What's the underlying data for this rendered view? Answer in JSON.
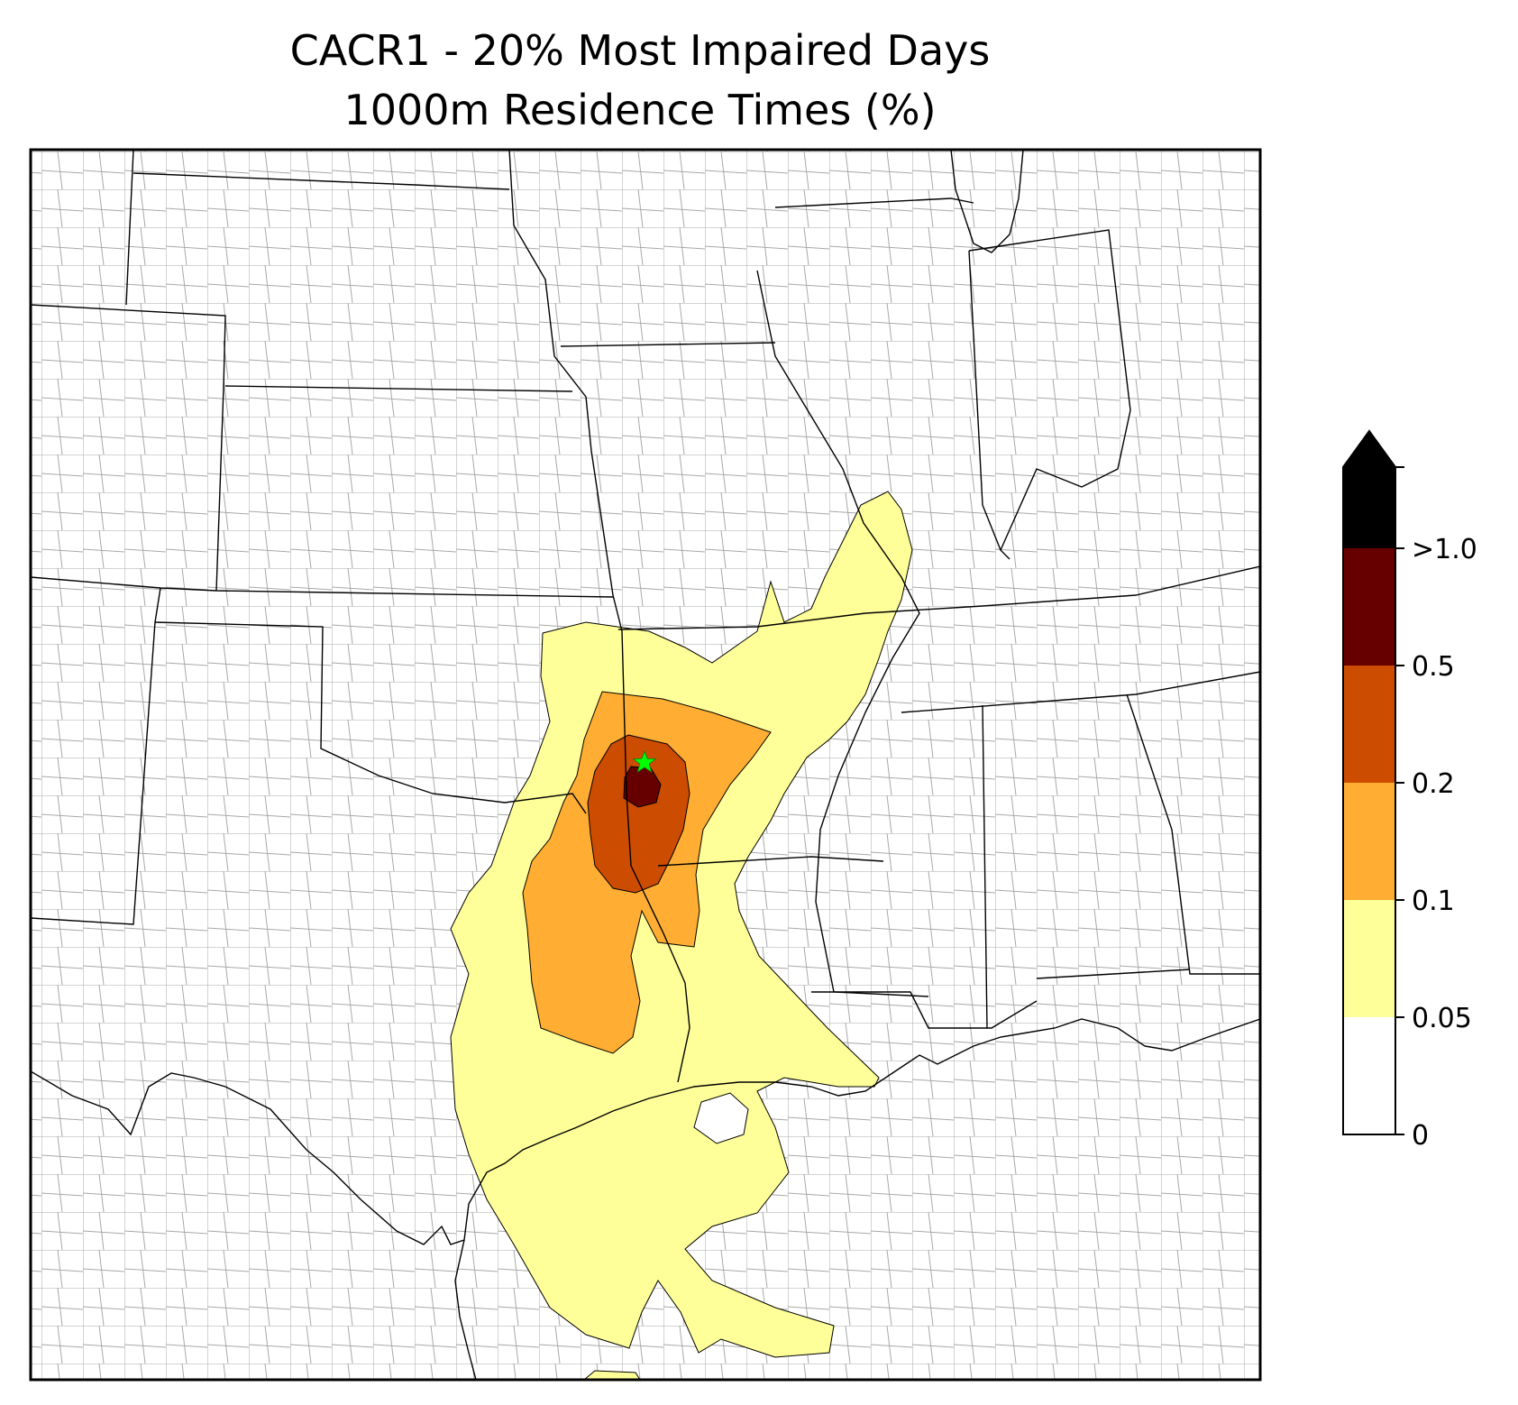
{
  "title": {
    "line1": "CACR1 - 20% Most Impaired Days",
    "line2": "1000m Residence Times (%)"
  },
  "colorbar": {
    "extend": "max",
    "bins": [
      {
        "from": 0,
        "to": 0.05,
        "color": "#ffffff"
      },
      {
        "from": 0.05,
        "to": 0.1,
        "color": "#ffff99"
      },
      {
        "from": 0.1,
        "to": 0.2,
        "color": "#ffad33"
      },
      {
        "from": 0.2,
        "to": 0.5,
        "color": "#cc4c02"
      },
      {
        "from": 0.5,
        "to": 1.0,
        "color": "#660000"
      }
    ],
    "over_color": "#000000",
    "tick_labels": [
      "0",
      "0.05",
      "0.1",
      "0.2",
      "0.5",
      ">1.0"
    ]
  },
  "map": {
    "site_marker_color": "#00ff00",
    "site_marker_icon": "star-icon",
    "state_line_color": "#000000",
    "county_line_color": "#a8a8a8"
  }
}
